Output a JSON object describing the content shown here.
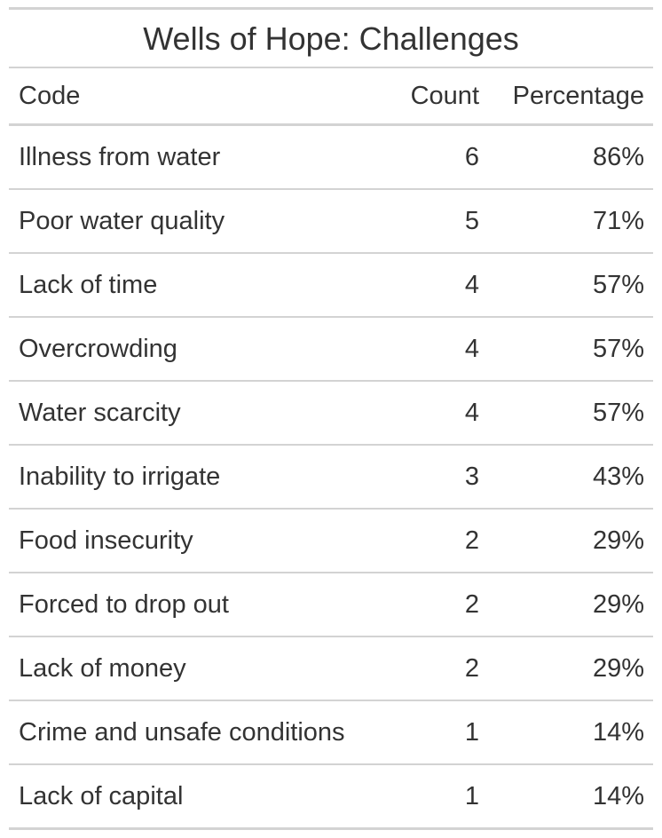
{
  "chart_data": {
    "type": "table",
    "title": "Wells of Hope: Challenges",
    "columns": [
      "Code",
      "Count",
      "Percentage"
    ],
    "rows": [
      {
        "code": "Illness from water",
        "count": "6",
        "percentage": "86%"
      },
      {
        "code": "Poor water quality",
        "count": "5",
        "percentage": "71%"
      },
      {
        "code": "Lack of time",
        "count": "4",
        "percentage": "57%"
      },
      {
        "code": "Overcrowding",
        "count": "4",
        "percentage": "57%"
      },
      {
        "code": "Water scarcity",
        "count": "4",
        "percentage": "57%"
      },
      {
        "code": "Inability to irrigate",
        "count": "3",
        "percentage": "43%"
      },
      {
        "code": "Food insecurity",
        "count": "2",
        "percentage": "29%"
      },
      {
        "code": "Forced to drop out",
        "count": "2",
        "percentage": "29%"
      },
      {
        "code": "Lack of money",
        "count": "2",
        "percentage": "29%"
      },
      {
        "code": "Crime and unsafe conditions",
        "count": "1",
        "percentage": "14%"
      },
      {
        "code": "Lack of capital",
        "count": "1",
        "percentage": "14%"
      }
    ]
  },
  "colors": {
    "text": "#333333",
    "rule": "#d3d3d3",
    "background": "#ffffff"
  }
}
